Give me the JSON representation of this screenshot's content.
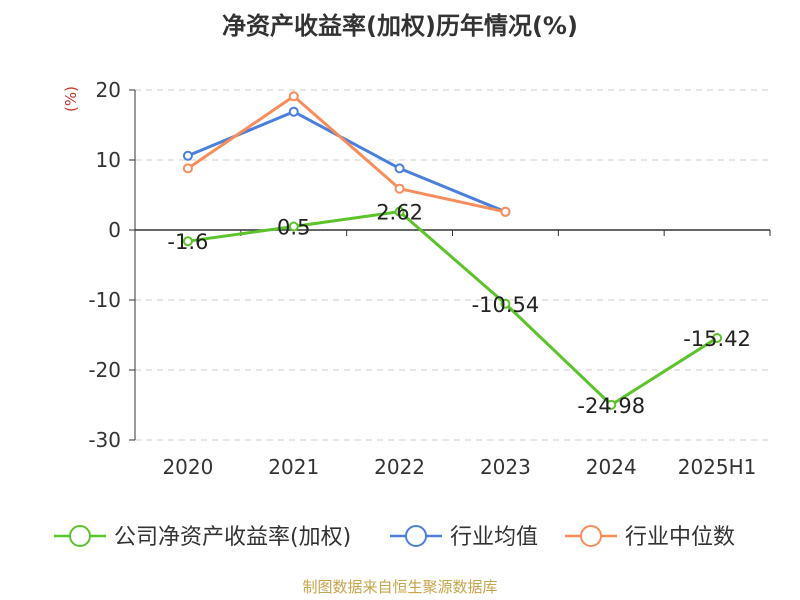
{
  "chart_data": {
    "type": "line",
    "title": "净资产收益率(加权)历年情况(%)",
    "unit_label": "(%)",
    "categories": [
      "2020",
      "2021",
      "2022",
      "2023",
      "2024",
      "2025H1"
    ],
    "ylim": [
      -30,
      20
    ],
    "yticks": [
      20,
      10,
      0,
      -10,
      -20,
      -30
    ],
    "grid": true,
    "legend_position": "bottom",
    "series": [
      {
        "name": "公司净资产收益率(加权)",
        "color": "#5cc32a",
        "values": [
          -1.6,
          0.5,
          2.62,
          -10.54,
          -24.98,
          -15.42
        ],
        "labels": [
          "-1.6",
          "0.5",
          "2.62",
          "-10.54",
          "-24.98",
          "-15.42"
        ]
      },
      {
        "name": "行业均值",
        "color": "#4a7fdc",
        "values": [
          10.6,
          16.9,
          8.8,
          2.6,
          null,
          null
        ]
      },
      {
        "name": "行业中位数",
        "color": "#f78d5a",
        "values": [
          8.8,
          19.1,
          5.9,
          2.6,
          null,
          null
        ]
      }
    ]
  },
  "source_text": "制图数据来自恒生聚源数据库"
}
